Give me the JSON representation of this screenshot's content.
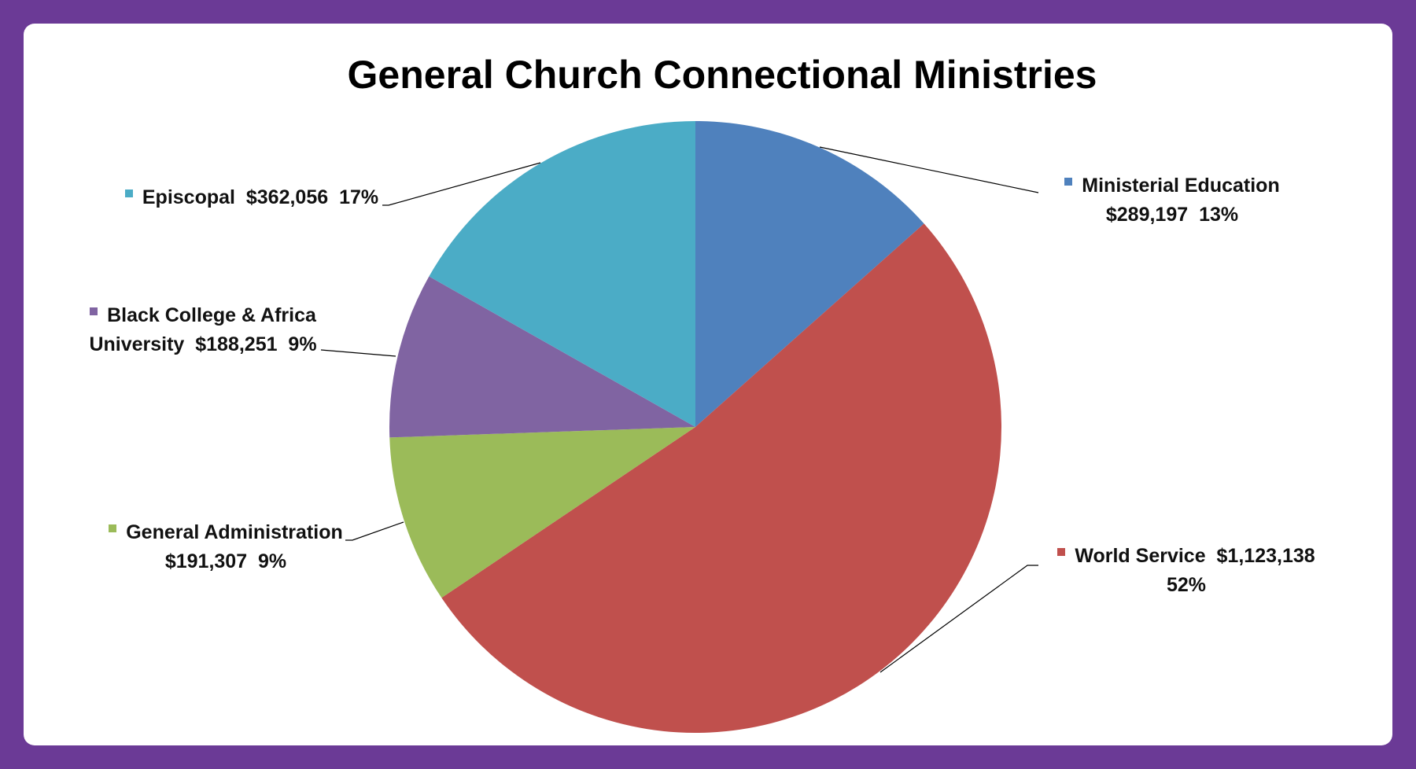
{
  "chart_data": {
    "type": "pie",
    "title": "General Church Connectional Ministries",
    "categories": [
      "Ministerial Education",
      "World Service",
      "General Administration",
      "Black College & Africa University",
      "Episcopal"
    ],
    "values": [
      289197,
      1123138,
      191307,
      188251,
      362056
    ],
    "value_labels": [
      "$289,197",
      "$1,123,138",
      "$191,307",
      "$188,251",
      "$362,056"
    ],
    "percents": [
      13,
      52,
      9,
      9,
      17
    ],
    "percent_labels": [
      "13%",
      "52%",
      "9%",
      "9%",
      "17%"
    ],
    "colors": [
      "#4f81bd",
      "#c0504d",
      "#9bbb59",
      "#8064a2",
      "#4bacc6"
    ]
  }
}
